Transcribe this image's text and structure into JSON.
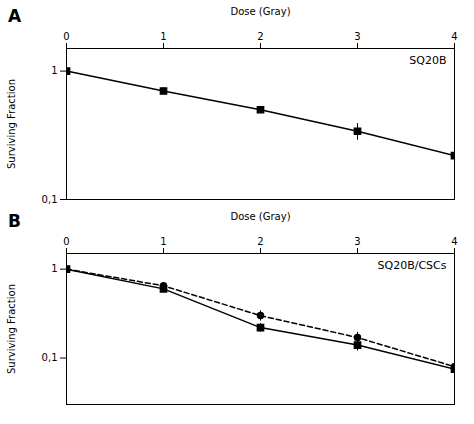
{
  "chart_data": [
    {
      "type": "line",
      "title": "SQ20B",
      "xlabel": "Dose (Gray)",
      "ylabel": "Surviving Fraction",
      "annotations": [
        "A"
      ],
      "log": "y",
      "grid": false,
      "xlim": [
        0,
        4
      ],
      "ylim": [
        0.1,
        1.5
      ],
      "xticks": [
        0,
        1,
        2,
        3,
        4
      ],
      "yticks": [
        {
          "value": 0.1,
          "label": "0,1"
        },
        1.0
      ],
      "x": [
        0,
        1,
        2,
        3,
        4
      ],
      "series": [
        {
          "color": "black",
          "marker": "square",
          "line_style": "solid",
          "values": [
            1.0,
            0.7,
            0.5,
            0.34,
            0.22
          ],
          "yerr": [
            0.0,
            0.04,
            0.03,
            0.05,
            0.025
          ]
        }
      ]
    },
    {
      "type": "line",
      "title": "SQ20B/CSCs",
      "xlabel": "Dose (Gray)",
      "ylabel": "Surviving Fraction",
      "annotations": [
        "B"
      ],
      "log": "y",
      "grid": false,
      "xlim": [
        0,
        4
      ],
      "ylim": [
        0.03,
        1.5
      ],
      "xticks": [
        0,
        1,
        2,
        3,
        4
      ],
      "yticks": [
        {
          "value": 0.1,
          "label": "0,1"
        },
        1.0
      ],
      "x": [
        0,
        1,
        2,
        3,
        4
      ],
      "series": [
        {
          "color": "black",
          "marker": "square",
          "line_style": "solid",
          "values": [
            1.0,
            0.6,
            0.22,
            0.14,
            0.075
          ],
          "yerr": [
            0.0,
            0.04,
            0.025,
            0.02,
            0.012
          ]
        },
        {
          "color": "black",
          "marker": "circle",
          "line_style": "dashed",
          "values": [
            1.0,
            0.65,
            0.3,
            0.17,
            0.08
          ],
          "yerr": [
            0.0,
            0.025,
            0.04,
            0.025,
            0.012
          ]
        }
      ]
    }
  ]
}
